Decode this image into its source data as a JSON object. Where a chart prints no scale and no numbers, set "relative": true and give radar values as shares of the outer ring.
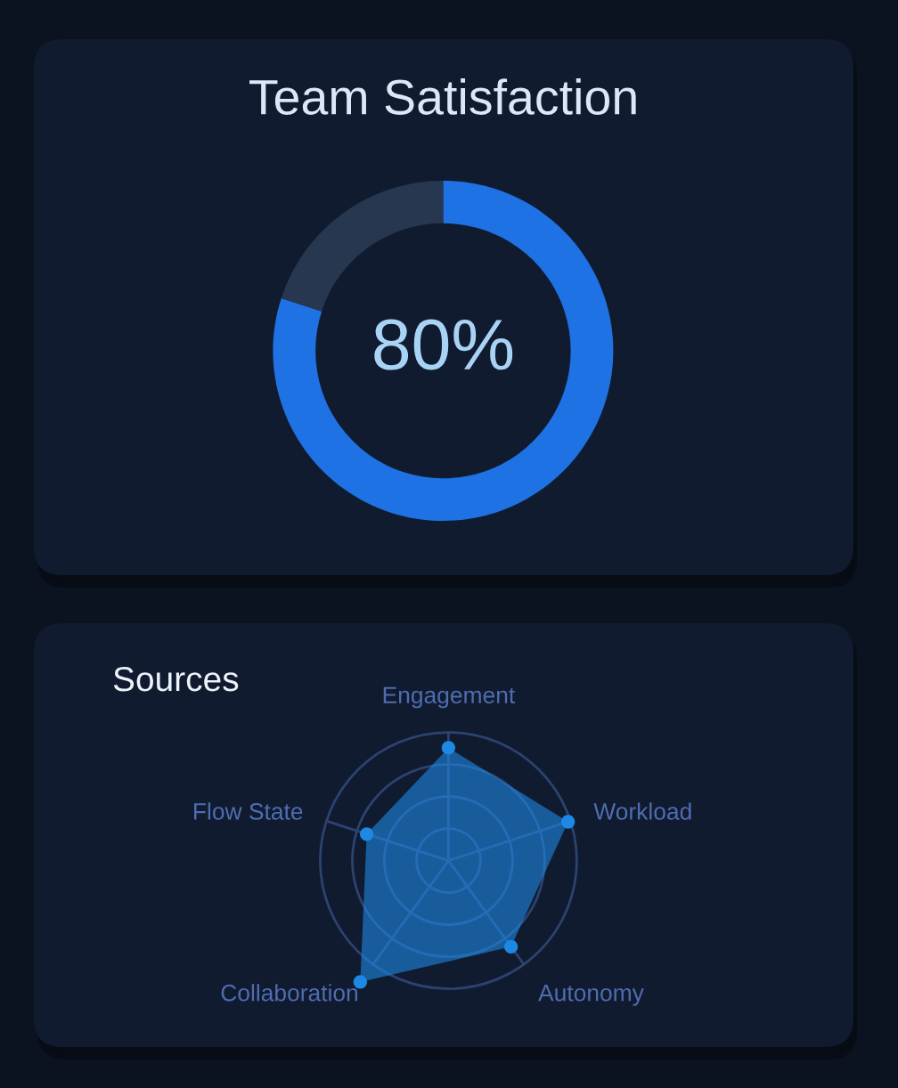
{
  "chart_data": [
    {
      "type": "donut",
      "title": "Team Satisfaction",
      "categories": [
        null,
        null
      ],
      "values": [
        80,
        20
      ],
      "colors": [
        "#1f72e3",
        "#27374f"
      ],
      "value_labels": [
        "80%",
        null
      ]
    },
    {
      "type": "radar",
      "title": "Sources",
      "categories": [
        "Engagement",
        "Workload",
        "Autonomy",
        "Collaboration",
        "Flow State"
      ],
      "relative": true,
      "series": [
        {
          "color": "#1e88e5",
          "values": [
            0.88,
            0.98,
            0.83,
            1.17,
            0.67
          ]
        }
      ],
      "marker": "circle",
      "grid": true
    }
  ]
}
